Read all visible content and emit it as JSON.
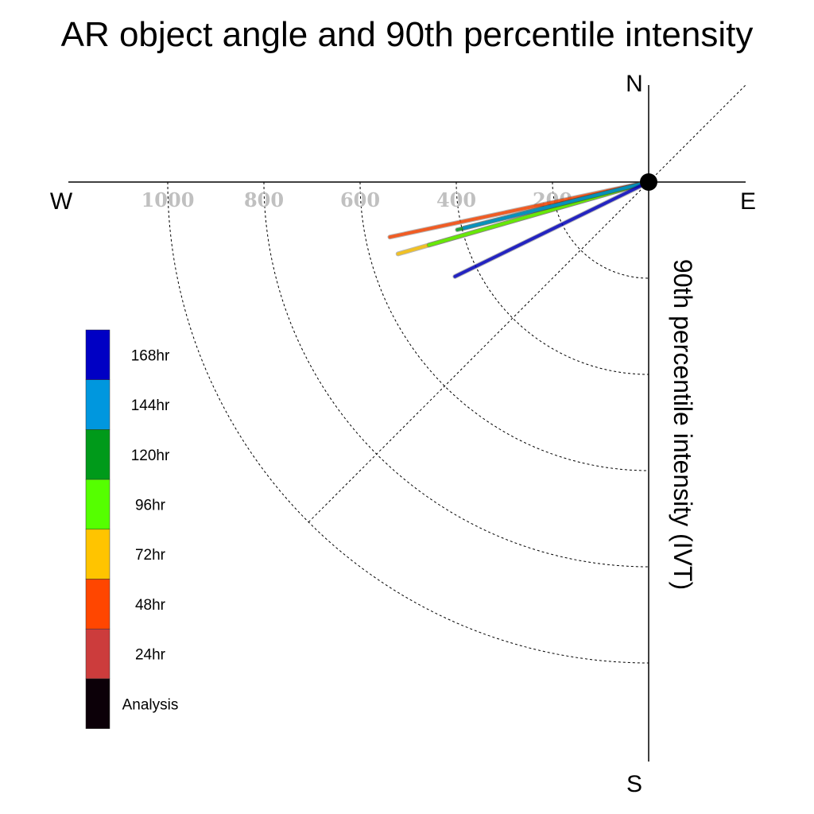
{
  "chart_data": {
    "type": "polar-line",
    "title": "AR object angle and 90th percentile intensity",
    "ylabel": "90th percentile intensity (IVT)",
    "compass": {
      "north": "N",
      "south": "S",
      "east": "E",
      "west": "W"
    },
    "radial_ticks": [
      "1000",
      "800",
      "600",
      "400",
      "200"
    ],
    "radial_tick_values": [
      1000,
      800,
      600,
      400,
      200
    ],
    "rings": [
      200,
      400,
      600,
      800,
      1000
    ],
    "legend": [
      {
        "label": "168hr",
        "color": "#0000c4"
      },
      {
        "label": "144hr",
        "color": "#0097de"
      },
      {
        "label": "120hr",
        "color": "#009a1a"
      },
      {
        "label": "96hr",
        "color": "#55ff00"
      },
      {
        "label": "72hr",
        "color": "#ffc400"
      },
      {
        "label": "48hr",
        "color": "#ff4600"
      },
      {
        "label": "24hr",
        "color": "#cc3c3c"
      },
      {
        "label": "Analysis",
        "color": "#0c0008"
      }
    ],
    "series": [
      {
        "name": "48hr",
        "color": "#ff4600",
        "angle_deg": 258,
        "intensity": 550
      },
      {
        "name": "72hr",
        "color": "#ffc400",
        "angle_deg": 254,
        "intensity": 542
      },
      {
        "name": "96hr",
        "color": "#55ff00",
        "angle_deg": 254,
        "intensity": 475
      },
      {
        "name": "120hr",
        "color": "#009a1a",
        "angle_deg": 256,
        "intensity": 410
      },
      {
        "name": "144hr",
        "color": "#0097de",
        "angle_deg": 256,
        "intensity": 395
      },
      {
        "name": "168hr",
        "color": "#0000c4",
        "angle_deg": 244,
        "intensity": 448
      }
    ]
  }
}
